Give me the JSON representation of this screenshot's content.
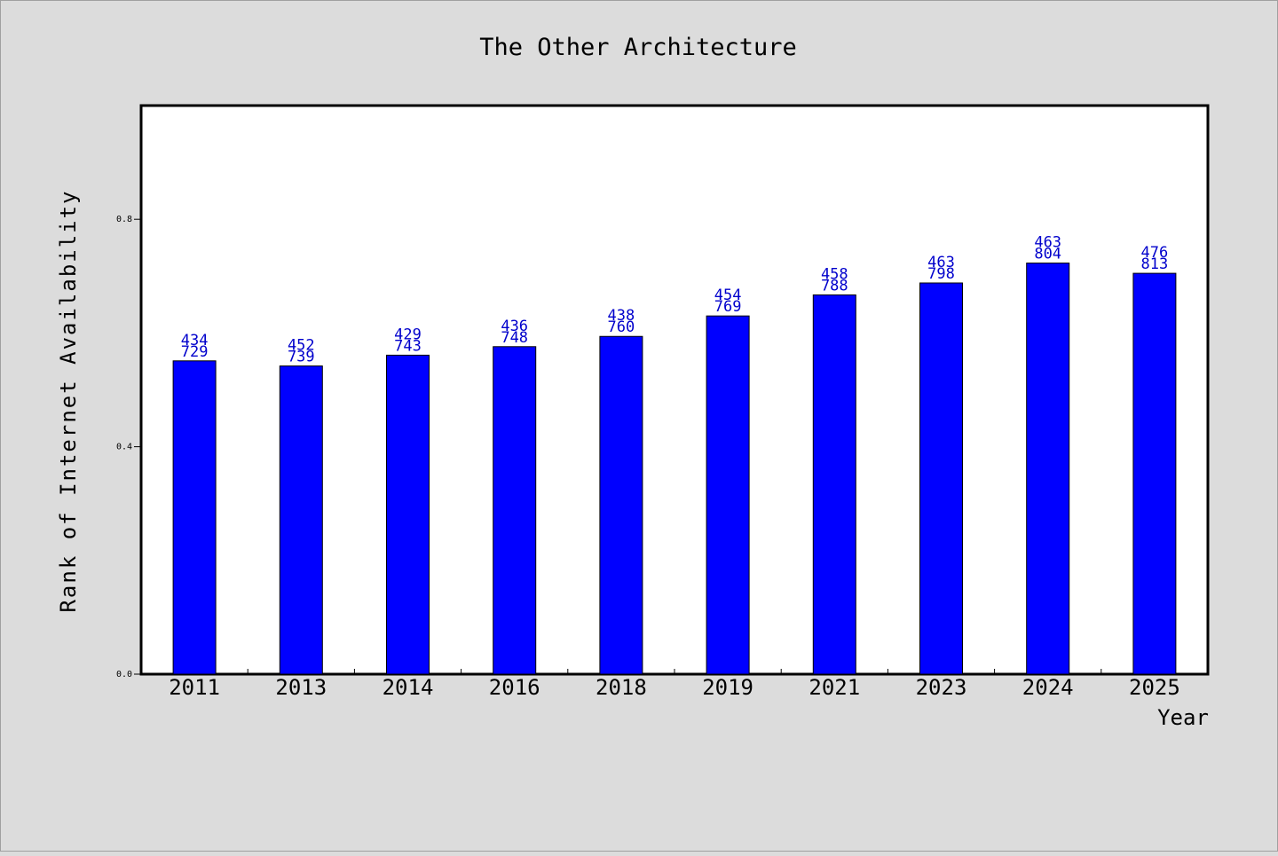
{
  "colors": {
    "background": "#dcdcdc",
    "plot_background": "#ffffff",
    "bar": "#0000ff",
    "bar_outline": "#000000",
    "data_label": "#0000cc",
    "text": "#000000"
  },
  "chart_data": {
    "type": "bar",
    "title": "The Other Architecture",
    "xlabel": "Year",
    "ylabel": "Rank of Internet Availability",
    "ylim": [
      0,
      1.0
    ],
    "yticks": [
      {
        "value": 0.0,
        "label": "0.0"
      },
      {
        "value": 0.4,
        "label": "0.4"
      },
      {
        "value": 0.8,
        "label": "0.8"
      }
    ],
    "grid": false,
    "legend": "none",
    "categories": [
      "2011",
      "2013",
      "2014",
      "2016",
      "2018",
      "2019",
      "2021",
      "2023",
      "2024",
      "2025"
    ],
    "values": [
      0.551,
      0.542,
      0.561,
      0.576,
      0.594,
      0.63,
      0.667,
      0.688,
      0.723,
      0.705
    ],
    "labels_top": [
      "434",
      "452",
      "429",
      "436",
      "438",
      "454",
      "458",
      "463",
      "463",
      "476"
    ],
    "labels_bottom": [
      "729",
      "739",
      "743",
      "748",
      "760",
      "769",
      "788",
      "798",
      "804",
      "813"
    ]
  }
}
